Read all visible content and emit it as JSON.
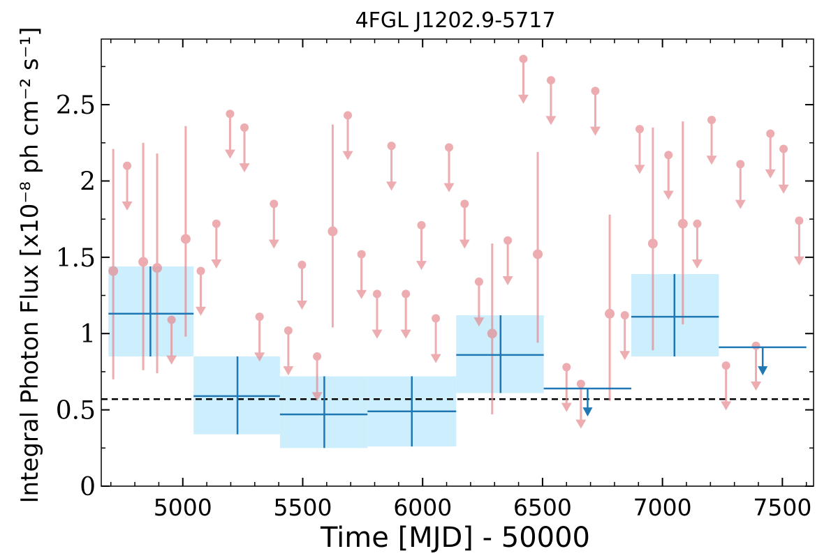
{
  "chart_data": {
    "type": "scatter",
    "title": "4FGL J1202.9-5717",
    "xlabel": "Time [MJD] - 50000",
    "ylabel": "Integral Photon Flux [x10⁻⁸ ph cm⁻² s⁻¹]",
    "xlim": [
      4660,
      7630
    ],
    "ylim": [
      0,
      2.93
    ],
    "x_ticks": [
      "5000",
      "5500",
      "6000",
      "6500",
      "7000",
      "7500"
    ],
    "y_ticks": [
      "0",
      "0.5",
      "1",
      "1.5",
      "2",
      "2.5"
    ],
    "reference_line": {
      "y": 0.57,
      "style": "dashed",
      "color": "#000000"
    },
    "colors": {
      "short_bins": "#e58a8f",
      "long_bins": "#1f77b4",
      "long_bins_band": "#cdeefc"
    },
    "series": [
      {
        "name": "",
        "description_type": "short-bin measurements",
        "points": [
          {
            "x": 4710,
            "y": 1.41,
            "lo": 0.7,
            "hi": 2.21
          },
          {
            "x": 4835,
            "y": 1.47,
            "lo": 0.76,
            "hi": 2.25
          },
          {
            "x": 4893,
            "y": 1.43,
            "lo": 0.74,
            "hi": 2.18
          },
          {
            "x": 5012,
            "y": 1.62,
            "lo": 0.98,
            "hi": 2.36
          },
          {
            "x": 5625,
            "y": 1.67,
            "lo": 1.04,
            "hi": 2.37
          },
          {
            "x": 6290,
            "y": 1.0,
            "lo": 0.47,
            "hi": 1.59
          },
          {
            "x": 6480,
            "y": 1.52,
            "lo": 0.94,
            "hi": 2.19
          },
          {
            "x": 6780,
            "y": 1.13,
            "lo": 0.56,
            "hi": 1.78
          },
          {
            "x": 6960,
            "y": 1.59,
            "lo": 0.89,
            "hi": 2.35
          },
          {
            "x": 7085,
            "y": 1.72,
            "lo": 1.06,
            "hi": 2.39
          }
        ]
      },
      {
        "name": "",
        "description_type": "short-bin upper limits",
        "upper_limits": [
          {
            "x": 4768,
            "y": 2.1
          },
          {
            "x": 4953,
            "y": 1.09
          },
          {
            "x": 5075,
            "y": 1.41
          },
          {
            "x": 5140,
            "y": 1.72
          },
          {
            "x": 5197,
            "y": 2.44
          },
          {
            "x": 5257,
            "y": 2.35
          },
          {
            "x": 5320,
            "y": 1.11
          },
          {
            "x": 5380,
            "y": 1.85
          },
          {
            "x": 5440,
            "y": 1.02
          },
          {
            "x": 5497,
            "y": 1.45
          },
          {
            "x": 5560,
            "y": 0.85
          },
          {
            "x": 5688,
            "y": 2.43
          },
          {
            "x": 5745,
            "y": 1.52
          },
          {
            "x": 5810,
            "y": 1.26
          },
          {
            "x": 5870,
            "y": 2.23
          },
          {
            "x": 5930,
            "y": 1.26
          },
          {
            "x": 5995,
            "y": 1.71
          },
          {
            "x": 6055,
            "y": 1.1
          },
          {
            "x": 6110,
            "y": 2.22
          },
          {
            "x": 6175,
            "y": 1.85
          },
          {
            "x": 6235,
            "y": 1.34
          },
          {
            "x": 6355,
            "y": 1.61
          },
          {
            "x": 6420,
            "y": 2.8
          },
          {
            "x": 6535,
            "y": 2.66
          },
          {
            "x": 6600,
            "y": 0.78
          },
          {
            "x": 6660,
            "y": 0.67
          },
          {
            "x": 6720,
            "y": 2.59
          },
          {
            "x": 6843,
            "y": 1.12
          },
          {
            "x": 6905,
            "y": 2.34
          },
          {
            "x": 7025,
            "y": 2.17
          },
          {
            "x": 7145,
            "y": 1.72
          },
          {
            "x": 7205,
            "y": 2.4
          },
          {
            "x": 7265,
            "y": 0.79
          },
          {
            "x": 7325,
            "y": 2.11
          },
          {
            "x": 7390,
            "y": 0.92
          },
          {
            "x": 7450,
            "y": 2.31
          },
          {
            "x": 7505,
            "y": 2.21
          },
          {
            "x": 7570,
            "y": 1.74
          }
        ]
      },
      {
        "name": "",
        "description_type": "long-bin measurements",
        "bins": [
          {
            "x0": 4690,
            "x1": 5045,
            "xc": 4865,
            "y": 1.13,
            "lo": 0.85,
            "hi": 1.44
          },
          {
            "x0": 5045,
            "x1": 5405,
            "xc": 5228,
            "y": 0.59,
            "lo": 0.34,
            "hi": 0.85
          },
          {
            "x0": 5405,
            "x1": 5770,
            "xc": 5590,
            "y": 0.47,
            "lo": 0.25,
            "hi": 0.72
          },
          {
            "x0": 5770,
            "x1": 6140,
            "xc": 5955,
            "y": 0.49,
            "lo": 0.26,
            "hi": 0.72
          },
          {
            "x0": 6140,
            "x1": 6505,
            "xc": 6325,
            "y": 0.86,
            "lo": 0.61,
            "hi": 1.12
          },
          {
            "x0": 6870,
            "x1": 7235,
            "xc": 7050,
            "y": 1.11,
            "lo": 0.85,
            "hi": 1.39
          }
        ]
      },
      {
        "name": "",
        "description_type": "long-bin upper limits",
        "upper_limits": [
          {
            "x0": 6505,
            "x1": 6870,
            "xc": 6688,
            "y": 0.64
          },
          {
            "x0": 7235,
            "x1": 7600,
            "xc": 7418,
            "y": 0.91
          }
        ]
      }
    ]
  }
}
